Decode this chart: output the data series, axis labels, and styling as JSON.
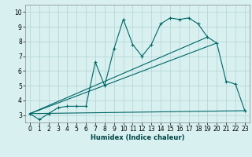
{
  "xlabel": "Humidex (Indice chaleur)",
  "bg_color": "#d8f0f0",
  "grid_color": "#b8d8d8",
  "line_color": "#006666",
  "xlim": [
    -0.5,
    23.5
  ],
  "ylim": [
    2.5,
    10.5
  ],
  "xticks": [
    0,
    1,
    2,
    3,
    4,
    5,
    6,
    7,
    8,
    9,
    10,
    11,
    12,
    13,
    14,
    15,
    16,
    17,
    18,
    19,
    20,
    21,
    22,
    23
  ],
  "yticks": [
    3,
    4,
    5,
    6,
    7,
    8,
    9,
    10
  ],
  "series1_x": [
    0,
    1,
    2,
    3,
    4,
    5,
    6,
    7,
    8,
    9,
    10,
    11,
    12,
    13,
    14,
    15,
    16,
    17,
    18,
    19,
    20,
    21,
    22,
    23
  ],
  "series1_y": [
    3.1,
    2.7,
    3.1,
    3.5,
    3.6,
    3.6,
    3.6,
    6.6,
    5.0,
    7.5,
    9.5,
    7.8,
    7.0,
    7.8,
    9.2,
    9.6,
    9.5,
    9.6,
    9.2,
    8.3,
    7.9,
    5.3,
    5.1,
    3.3
  ],
  "series2_x": [
    0,
    19
  ],
  "series2_y": [
    3.1,
    8.3
  ],
  "series3_x": [
    0,
    20
  ],
  "series3_y": [
    3.1,
    7.9
  ],
  "series4_x": [
    0,
    23
  ],
  "series4_y": [
    3.1,
    3.3
  ]
}
